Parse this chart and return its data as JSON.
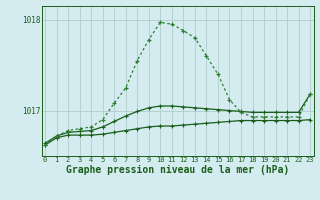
{
  "xlabel": "Graphe pression niveau de la mer (hPa)",
  "background_color": "#d4ecf0",
  "grid_color": "#b0cccc",
  "line_color_dark": "#1a5e1a",
  "line_color_mid": "#2e7d32",
  "x": [
    0,
    1,
    2,
    3,
    4,
    5,
    6,
    7,
    8,
    9,
    10,
    11,
    12,
    13,
    14,
    15,
    16,
    17,
    18,
    19,
    20,
    21,
    22,
    23
  ],
  "pressure_dotted": [
    1016.62,
    1016.72,
    1016.78,
    1016.8,
    1016.82,
    1016.9,
    1017.08,
    1017.25,
    1017.55,
    1017.78,
    1017.97,
    1017.95,
    1017.88,
    1017.8,
    1017.6,
    1017.4,
    1017.12,
    1016.98,
    1016.93,
    1016.93,
    1016.93,
    1016.93,
    1016.93,
    1017.18
  ],
  "pmin": [
    1016.62,
    1016.7,
    1016.73,
    1016.73,
    1016.73,
    1016.74,
    1016.76,
    1016.78,
    1016.8,
    1016.82,
    1016.83,
    1016.83,
    1016.84,
    1016.85,
    1016.86,
    1016.87,
    1016.88,
    1016.89,
    1016.89,
    1016.89,
    1016.89,
    1016.89,
    1016.89,
    1016.9
  ],
  "pmax": [
    1016.64,
    1016.72,
    1016.76,
    1016.77,
    1016.78,
    1016.82,
    1016.88,
    1016.94,
    1016.99,
    1017.03,
    1017.05,
    1017.05,
    1017.04,
    1017.03,
    1017.02,
    1017.01,
    1017.0,
    1016.99,
    1016.98,
    1016.98,
    1016.98,
    1016.98,
    1016.98,
    1017.18
  ],
  "ylim": [
    1016.5,
    1018.15
  ],
  "yticks": [
    1017,
    1018
  ],
  "xtick_fontsize": 5.0,
  "ytick_fontsize": 5.5,
  "xlabel_fontsize": 7.0
}
